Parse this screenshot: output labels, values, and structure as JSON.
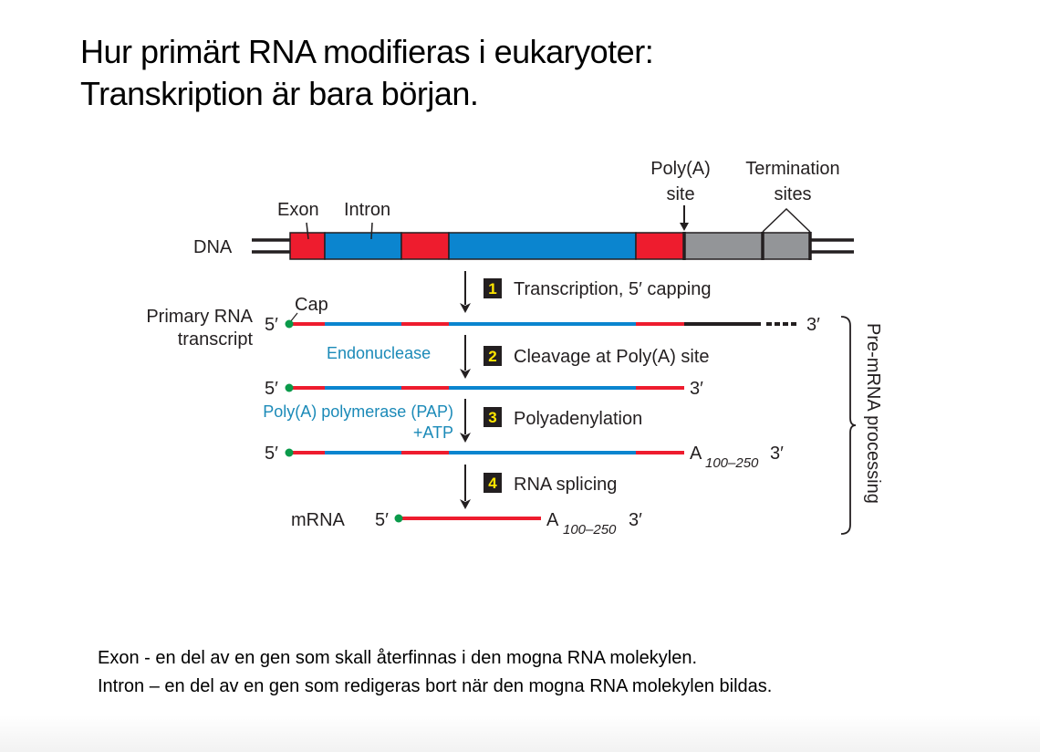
{
  "title": {
    "line1": "Hur primärt RNA modifieras i eukaryoter:",
    "line2": "Transkription är bara början."
  },
  "diagram": {
    "dna_label": "DNA",
    "exon_label": "Exon",
    "intron_label": "Intron",
    "polya_site_label": [
      "Poly(A)",
      "site"
    ],
    "termination_sites_label": [
      "Termination",
      "sites"
    ],
    "primary_rna_label": [
      "Primary RNA",
      "transcript"
    ],
    "cap_label": "Cap",
    "five_prime": "5′",
    "three_prime": "3′",
    "poly_a": "A",
    "poly_a_range": "100–250",
    "mrna_label": "mRNA",
    "enzyme_endonuclease": "Endonuclease",
    "enzyme_pap": [
      "Poly(A) polymerase (PAP)",
      "+ATP"
    ],
    "steps": [
      {
        "num": "1",
        "label": "Transcription, 5′ capping"
      },
      {
        "num": "2",
        "label": "Cleavage at Poly(A) site"
      },
      {
        "num": "3",
        "label": "Polyadenylation"
      },
      {
        "num": "4",
        "label": "RNA splicing"
      }
    ],
    "bracket_label": "Pre-mRNA processing",
    "colors": {
      "exon": "#ee1c2e",
      "intron": "#0b85cf",
      "noncoding": "#939598",
      "cap": "#0a9a4a",
      "enzyme_text": "#1b8ab8"
    }
  },
  "footer": {
    "exon_def": "Exon -  en del av en gen som skall återfinnas i den mogna RNA molekylen.",
    "intron_def": "Intron – en del av en gen som redigeras bort när den mogna RNA molekylen bildas."
  }
}
